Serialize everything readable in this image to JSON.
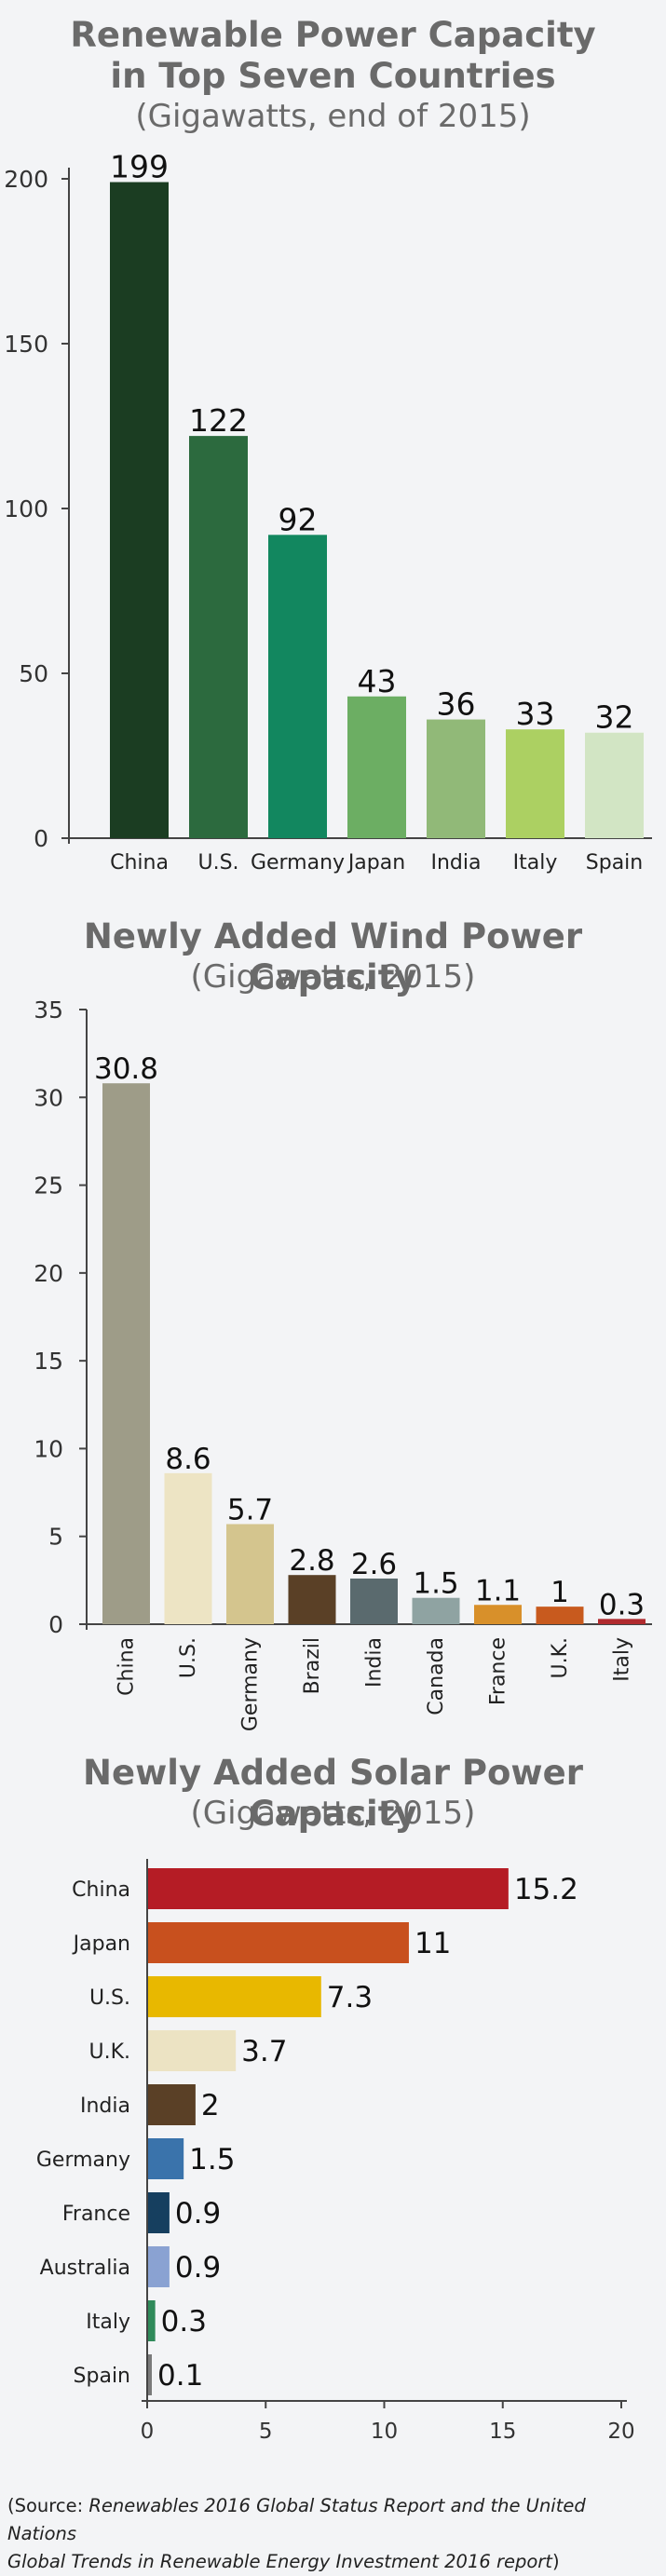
{
  "chart_data": [
    {
      "type": "bar",
      "title_line1": "Renewable Power Capacity",
      "title_line2": "in Top Seven Countries",
      "subtitle": "(Gigawatts, end of 2015)",
      "categories": [
        "China",
        "U.S.",
        "Germany",
        "Japan",
        "India",
        "Italy",
        "Spain"
      ],
      "values": [
        199,
        122,
        92,
        43,
        36,
        33,
        32
      ],
      "value_labels": [
        "199",
        "122",
        "92",
        "43",
        "36",
        "33",
        "32"
      ],
      "colors": [
        "#1b3d22",
        "#2c6a3e",
        "#12875f",
        "#6cae63",
        "#91b978",
        "#acd062",
        "#d2e5c4"
      ],
      "yticks": [
        "0",
        "50",
        "100",
        "150",
        "200"
      ],
      "ylim": [
        0,
        200
      ]
    },
    {
      "type": "bar",
      "title": "Newly Added Wind Power Capacity",
      "subtitle": "(Gigawatts, 2015)",
      "categories": [
        "China",
        "U.S.",
        "Germany",
        "Brazil",
        "India",
        "Canada",
        "France",
        "U.K.",
        "Italy"
      ],
      "values": [
        30.8,
        8.6,
        5.7,
        2.8,
        2.6,
        1.5,
        1.1,
        1,
        0.3
      ],
      "value_labels": [
        "30.8",
        "8.6",
        "5.7",
        "2.8",
        "2.6",
        "1.5",
        "1.1",
        "1",
        "0.3"
      ],
      "colors": [
        "#9e9c88",
        "#ede4c4",
        "#d4c58e",
        "#5a4026",
        "#5a6a6e",
        "#8fa3a2",
        "#d8902a",
        "#c85a1e",
        "#b02a2e"
      ],
      "yticks": [
        "0",
        "5",
        "10",
        "15",
        "20",
        "25",
        "30",
        "35"
      ],
      "ylim": [
        0,
        35
      ]
    },
    {
      "type": "bar",
      "orientation": "horizontal",
      "title": "Newly Added Solar Power Capacity",
      "subtitle": "(Gigawatts, 2015)",
      "categories": [
        "China",
        "Japan",
        "U.S.",
        "U.K.",
        "India",
        "Germany",
        "France",
        "Australia",
        "Italy",
        "Spain"
      ],
      "values": [
        15.2,
        11,
        7.3,
        3.7,
        2,
        1.5,
        0.9,
        0.9,
        0.3,
        0.1
      ],
      "value_labels": [
        "15.2",
        "11",
        "7.3",
        "3.7",
        "2",
        "1.5",
        "0.9",
        "0.9",
        "0.3",
        "0.1"
      ],
      "colors": [
        "#b51c25",
        "#c8501e",
        "#e8b800",
        "#ece3c3",
        "#5a4026",
        "#3a73ab",
        "#163f5f",
        "#8aa2d2",
        "#2f8a5a",
        "#7a7a7a"
      ],
      "xticks": [
        "0",
        "5",
        "10",
        "15",
        "20"
      ],
      "xlim": [
        0,
        20
      ]
    }
  ],
  "source": {
    "prefix": "(Source: ",
    "italic_line1": "Renewables 2016 Global Status Report and the United Nations",
    "italic_line2": "Global Trends in Renewable Energy Investment 2016 report",
    "suffix": ")"
  }
}
